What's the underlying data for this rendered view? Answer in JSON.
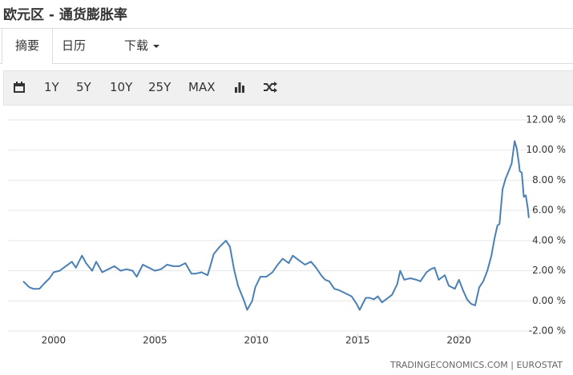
{
  "header": {
    "title": "欧元区 - 通货膨胀率"
  },
  "tabs": [
    "摘要",
    "日历",
    "下载"
  ],
  "toolbar": [
    "1Y",
    "5Y",
    "10Y",
    "25Y",
    "MAX"
  ],
  "chart_data": {
    "type": "line",
    "source": "TRADINGECONOMICS.COM | EUROSTAT",
    "x": [
      1998.5,
      1998.8,
      1999.0,
      1999.3,
      1999.5,
      1999.8,
      2000.0,
      2000.3,
      2000.6,
      2000.9,
      2001.1,
      2001.4,
      2001.6,
      2001.9,
      2002.1,
      2002.4,
      2002.7,
      2003.0,
      2003.3,
      2003.6,
      2003.9,
      2004.1,
      2004.4,
      2004.7,
      2005.0,
      2005.3,
      2005.6,
      2005.9,
      2006.2,
      2006.5,
      2006.8,
      2007.0,
      2007.3,
      2007.6,
      2007.9,
      2008.2,
      2008.5,
      2008.7,
      2008.9,
      2009.1,
      2009.4,
      2009.55,
      2009.8,
      2009.95,
      2010.2,
      2010.5,
      2010.8,
      2011.0,
      2011.3,
      2011.6,
      2011.8,
      2012.1,
      2012.4,
      2012.7,
      2012.95,
      2013.2,
      2013.4,
      2013.6,
      2013.85,
      2014.1,
      2014.4,
      2014.7,
      2014.95,
      2015.1,
      2015.4,
      2015.6,
      2015.8,
      2016.0,
      2016.2,
      2016.4,
      2016.7,
      2016.95,
      2017.1,
      2017.3,
      2017.6,
      2017.9,
      2018.1,
      2018.4,
      2018.6,
      2018.8,
      2019.0,
      2019.3,
      2019.5,
      2019.8,
      2020.0,
      2020.2,
      2020.4,
      2020.6,
      2020.8,
      2021.0,
      2021.2,
      2021.4,
      2021.6,
      2021.75,
      2021.9,
      2022.0,
      2022.15,
      2022.3,
      2022.45,
      2022.6,
      2022.75,
      2022.85,
      2022.95,
      2023.0,
      2023.1,
      2023.2,
      2023.3,
      2023.4,
      2023.45
    ],
    "series": [
      {
        "color": "#4a80b5",
        "values": [
          1.3,
          0.9,
          0.8,
          0.8,
          1.1,
          1.5,
          1.9,
          2.0,
          2.3,
          2.6,
          2.2,
          3.0,
          2.5,
          2.0,
          2.6,
          1.9,
          2.1,
          2.3,
          2.0,
          2.1,
          2.0,
          1.6,
          2.4,
          2.2,
          2.0,
          2.1,
          2.4,
          2.3,
          2.3,
          2.5,
          1.8,
          1.8,
          1.9,
          1.7,
          3.1,
          3.6,
          4.0,
          3.6,
          2.1,
          1.0,
          0.0,
          -0.6,
          0.0,
          0.9,
          1.6,
          1.6,
          1.9,
          2.3,
          2.8,
          2.5,
          3.0,
          2.7,
          2.4,
          2.6,
          2.2,
          1.7,
          1.4,
          1.3,
          0.8,
          0.7,
          0.5,
          0.3,
          -0.2,
          -0.6,
          0.2,
          0.2,
          0.1,
          0.3,
          -0.1,
          0.1,
          0.4,
          1.1,
          2.0,
          1.4,
          1.5,
          1.4,
          1.3,
          1.9,
          2.1,
          2.2,
          1.4,
          1.7,
          1.0,
          0.8,
          1.4,
          0.7,
          0.1,
          -0.2,
          -0.3,
          0.9,
          1.3,
          2.0,
          3.0,
          4.1,
          5.0,
          5.1,
          7.4,
          8.1,
          8.6,
          9.1,
          10.6,
          10.1,
          9.2,
          8.6,
          8.5,
          6.9,
          7.0,
          6.1,
          5.5
        ]
      }
    ],
    "xlim": [
      1997.75,
      2023.65
    ],
    "xticks": [
      2000,
      2005,
      2010,
      2015,
      2020
    ],
    "ylim": [
      -2,
      12
    ],
    "yticks": [
      {
        "value": 12,
        "label": "12.00 %"
      },
      {
        "value": 10,
        "label": "10.00 %"
      },
      {
        "value": 8,
        "label": "8.00 %"
      },
      {
        "value": 6,
        "label": "6.00 %"
      },
      {
        "value": 4,
        "label": "4.00 %"
      },
      {
        "value": 2,
        "label": "2.00 %"
      },
      {
        "value": 0,
        "label": "0.00 %"
      },
      {
        "value": -2,
        "label": "-2.00 %"
      }
    ],
    "grid": true
  }
}
